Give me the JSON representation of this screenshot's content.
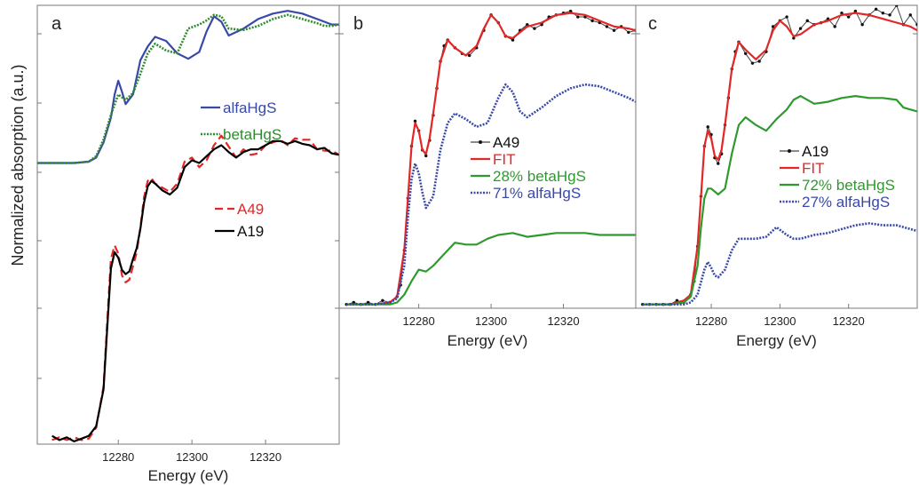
{
  "figure": {
    "ylabel": "Normalized absorption (a.u.)"
  },
  "chart_data": [
    {
      "panel": "a",
      "type": "line",
      "xlabel": "Energy (eV)",
      "ylabel": "Normalized absorption (a.u.)",
      "xlim": [
        12258,
        12340
      ],
      "ylim": [
        -0.1,
        3.1
      ],
      "xticks": [
        12280,
        12300,
        12320
      ],
      "x_tick_labels": [
        "12280",
        "12300",
        "12320"
      ],
      "grid": false,
      "legend_position": "middle-right",
      "series": [
        {
          "name": "alfaHgS",
          "color": "#3949a8",
          "style": "solid",
          "x": [
            12258,
            12268,
            12272,
            12274,
            12276,
            12278,
            12279,
            12280,
            12281,
            12282,
            12284,
            12286,
            12288,
            12290,
            12293,
            12296,
            12299,
            12302,
            12304,
            12306,
            12308,
            12310,
            12314,
            12318,
            12322,
            12326,
            12330,
            12334,
            12336,
            12338,
            12340
          ],
          "y": [
            1.95,
            1.95,
            1.96,
            1.99,
            2.1,
            2.28,
            2.45,
            2.55,
            2.47,
            2.38,
            2.45,
            2.7,
            2.8,
            2.87,
            2.84,
            2.75,
            2.71,
            2.76,
            2.91,
            3.02,
            2.98,
            2.88,
            2.93,
            3.0,
            3.04,
            3.06,
            3.04,
            3.0,
            2.98,
            2.96,
            2.96
          ]
        },
        {
          "name": "betaHgS",
          "color": "#2e8b2e",
          "style": "dotted",
          "x": [
            12258,
            12268,
            12272,
            12274,
            12276,
            12278,
            12280,
            12282,
            12284,
            12286,
            12288,
            12290,
            12293,
            12296,
            12299,
            12302,
            12304,
            12306,
            12308,
            12310,
            12314,
            12318,
            12322,
            12326,
            12330,
            12334,
            12336,
            12338,
            12340
          ],
          "y": [
            1.95,
            1.95,
            1.96,
            2.0,
            2.12,
            2.3,
            2.45,
            2.41,
            2.46,
            2.6,
            2.75,
            2.82,
            2.77,
            2.75,
            2.93,
            2.96,
            2.99,
            3.03,
            3.02,
            2.93,
            2.92,
            2.95,
            3.0,
            3.03,
            3.0,
            2.97,
            2.95,
            2.95,
            2.96
          ]
        },
        {
          "name": "A49",
          "color": "#e32626",
          "style": "dashed",
          "x": [
            12262,
            12264,
            12266,
            12268,
            12270,
            12272,
            12274,
            12276,
            12277,
            12278,
            12279,
            12280,
            12281,
            12282,
            12283,
            12284,
            12285,
            12286,
            12287,
            12288,
            12289,
            12290,
            12292,
            12294,
            12296,
            12298,
            12300,
            12302,
            12304,
            12306,
            12308,
            12310,
            12312,
            12314,
            12316,
            12318,
            12320,
            12322,
            12324,
            12326,
            12328,
            12330,
            12332,
            12334,
            12336,
            12338,
            12340
          ],
          "y": [
            -0.07,
            -0.05,
            -0.07,
            -0.05,
            -0.07,
            -0.06,
            0.02,
            0.32,
            0.8,
            1.25,
            1.35,
            1.29,
            1.13,
            1.08,
            1.1,
            1.2,
            1.3,
            1.48,
            1.7,
            1.82,
            1.84,
            1.8,
            1.77,
            1.74,
            1.8,
            1.96,
            1.99,
            1.92,
            1.97,
            2.08,
            2.15,
            2.07,
            1.99,
            2.05,
            2.01,
            2.02,
            2.08,
            2.1,
            2.12,
            2.08,
            2.13,
            2.12,
            2.12,
            2.05,
            2.04,
            2.04,
            2.01
          ]
        },
        {
          "name": "A19",
          "color": "#000000",
          "style": "solid",
          "x": [
            12262,
            12264,
            12266,
            12268,
            12270,
            12272,
            12274,
            12276,
            12277,
            12278,
            12279,
            12280,
            12281,
            12282,
            12283,
            12284,
            12285,
            12286,
            12287,
            12288,
            12289,
            12290,
            12292,
            12294,
            12296,
            12298,
            12300,
            12302,
            12304,
            12306,
            12308,
            12310,
            12312,
            12314,
            12316,
            12318,
            12320,
            12322,
            12324,
            12326,
            12328,
            12330,
            12332,
            12334,
            12336,
            12338,
            12340
          ],
          "y": [
            -0.04,
            -0.07,
            -0.05,
            -0.08,
            -0.06,
            -0.04,
            0.03,
            0.3,
            0.75,
            1.18,
            1.3,
            1.26,
            1.17,
            1.14,
            1.16,
            1.25,
            1.33,
            1.47,
            1.66,
            1.78,
            1.82,
            1.8,
            1.75,
            1.72,
            1.77,
            1.92,
            1.97,
            1.95,
            2.0,
            2.05,
            2.08,
            2.03,
            1.99,
            2.03,
            2.05,
            2.05,
            2.08,
            2.11,
            2.11,
            2.09,
            2.11,
            2.09,
            2.08,
            2.05,
            2.06,
            2.02,
            2.01
          ]
        }
      ]
    },
    {
      "panel": "b",
      "type": "line",
      "xlabel": "Energy (eV)",
      "xlim": [
        12258,
        12340
      ],
      "ylim": [
        -0.02,
        1.55
      ],
      "xticks": [
        12280,
        12300,
        12320
      ],
      "x_tick_labels": [
        "12280",
        "12300",
        "12320"
      ],
      "grid": false,
      "legend_position": "middle-left",
      "series": [
        {
          "name": "A49",
          "color": "#444444",
          "style": "line-markers",
          "x": [
            12260,
            12262,
            12264,
            12266,
            12268,
            12270,
            12272,
            12274,
            12275,
            12276,
            12277,
            12278,
            12279,
            12280,
            12281,
            12282,
            12283,
            12284,
            12285,
            12286,
            12287,
            12288,
            12290,
            12292,
            12294,
            12296,
            12298,
            12300,
            12302,
            12304,
            12306,
            12308,
            12310,
            12312,
            12314,
            12316,
            12318,
            12320,
            12322,
            12324,
            12326,
            12328,
            12330,
            12332,
            12334,
            12336,
            12338,
            12340
          ],
          "y": [
            0.0,
            0.01,
            0.0,
            0.01,
            0.0,
            0.02,
            0.01,
            0.04,
            0.1,
            0.28,
            0.55,
            0.82,
            0.95,
            0.9,
            0.8,
            0.77,
            0.85,
            0.98,
            1.12,
            1.26,
            1.34,
            1.37,
            1.33,
            1.3,
            1.29,
            1.33,
            1.42,
            1.5,
            1.46,
            1.39,
            1.37,
            1.42,
            1.45,
            1.43,
            1.45,
            1.49,
            1.5,
            1.51,
            1.52,
            1.49,
            1.49,
            1.47,
            1.46,
            1.44,
            1.42,
            1.44,
            1.41,
            1.42
          ]
        },
        {
          "name": "FIT",
          "color": "#e32626",
          "style": "solid",
          "x": [
            12260,
            12268,
            12272,
            12274,
            12276,
            12277,
            12278,
            12279,
            12280,
            12281,
            12282,
            12283,
            12284,
            12286,
            12288,
            12290,
            12293,
            12296,
            12298,
            12300,
            12302,
            12304,
            12306,
            12310,
            12314,
            12318,
            12322,
            12326,
            12330,
            12334,
            12338,
            12340
          ],
          "y": [
            0.0,
            0.0,
            0.01,
            0.04,
            0.28,
            0.55,
            0.82,
            0.94,
            0.9,
            0.8,
            0.78,
            0.86,
            0.99,
            1.26,
            1.37,
            1.33,
            1.29,
            1.34,
            1.43,
            1.5,
            1.46,
            1.39,
            1.38,
            1.44,
            1.46,
            1.5,
            1.51,
            1.5,
            1.47,
            1.44,
            1.43,
            1.42
          ]
        },
        {
          "name": "28% betaHgS",
          "color": "#2e9a2e",
          "style": "solid",
          "x": [
            12260,
            12268,
            12272,
            12274,
            12276,
            12278,
            12280,
            12282,
            12284,
            12286,
            12288,
            12290,
            12293,
            12296,
            12299,
            12302,
            12306,
            12310,
            12314,
            12318,
            12322,
            12326,
            12330,
            12334,
            12338,
            12340
          ],
          "y": [
            0.0,
            0.0,
            0.0,
            0.01,
            0.05,
            0.12,
            0.18,
            0.17,
            0.2,
            0.24,
            0.28,
            0.32,
            0.31,
            0.31,
            0.34,
            0.36,
            0.37,
            0.35,
            0.36,
            0.37,
            0.37,
            0.37,
            0.36,
            0.36,
            0.36,
            0.36
          ]
        },
        {
          "name": "71% alfaHgS",
          "color": "#3949a8",
          "style": "dotted",
          "x": [
            12260,
            12268,
            12272,
            12274,
            12276,
            12277,
            12278,
            12279,
            12280,
            12281,
            12282,
            12284,
            12286,
            12288,
            12290,
            12293,
            12296,
            12299,
            12302,
            12304,
            12306,
            12308,
            12310,
            12314,
            12318,
            12322,
            12326,
            12330,
            12334,
            12338,
            12340
          ],
          "y": [
            0.0,
            0.0,
            0.01,
            0.03,
            0.2,
            0.45,
            0.65,
            0.73,
            0.68,
            0.58,
            0.5,
            0.56,
            0.8,
            0.94,
            0.99,
            0.96,
            0.92,
            0.94,
            1.07,
            1.14,
            1.1,
            1.0,
            0.97,
            1.02,
            1.08,
            1.12,
            1.14,
            1.13,
            1.1,
            1.07,
            1.05
          ]
        }
      ]
    },
    {
      "panel": "c",
      "type": "line",
      "xlabel": "Energy (eV)",
      "xlim": [
        12258,
        12340
      ],
      "ylim": [
        -0.02,
        1.55
      ],
      "xticks": [
        12280,
        12300,
        12320
      ],
      "x_tick_labels": [
        "12280",
        "12300",
        "12320"
      ],
      "grid": false,
      "legend_position": "middle-right",
      "series": [
        {
          "name": "A19",
          "color": "#444444",
          "style": "line-markers",
          "x": [
            12260,
            12262,
            12264,
            12266,
            12268,
            12270,
            12272,
            12274,
            12275,
            12276,
            12277,
            12278,
            12279,
            12280,
            12281,
            12282,
            12283,
            12284,
            12285,
            12286,
            12287,
            12288,
            12290,
            12292,
            12294,
            12296,
            12298,
            12300,
            12302,
            12304,
            12306,
            12308,
            12310,
            12312,
            12314,
            12316,
            12318,
            12320,
            12322,
            12324,
            12326,
            12328,
            12330,
            12332,
            12334,
            12336,
            12338,
            12340
          ],
          "y": [
            0.0,
            0.0,
            0.0,
            0.0,
            0.0,
            0.02,
            0.01,
            0.05,
            0.12,
            0.3,
            0.56,
            0.82,
            0.92,
            0.88,
            0.76,
            0.73,
            0.78,
            0.93,
            1.07,
            1.22,
            1.31,
            1.36,
            1.3,
            1.25,
            1.26,
            1.31,
            1.44,
            1.47,
            1.49,
            1.38,
            1.43,
            1.47,
            1.45,
            1.46,
            1.48,
            1.44,
            1.51,
            1.49,
            1.52,
            1.45,
            1.5,
            1.53,
            1.51,
            1.5,
            1.55,
            1.45,
            1.5,
            1.45
          ]
        },
        {
          "name": "FIT",
          "color": "#e32626",
          "style": "solid",
          "x": [
            12260,
            12268,
            12272,
            12274,
            12276,
            12277,
            12278,
            12279,
            12280,
            12281,
            12282,
            12283,
            12284,
            12286,
            12288,
            12290,
            12293,
            12296,
            12298,
            12300,
            12302,
            12304,
            12306,
            12310,
            12314,
            12318,
            12322,
            12326,
            12330,
            12334,
            12338,
            12340
          ],
          "y": [
            0.0,
            0.0,
            0.02,
            0.05,
            0.3,
            0.56,
            0.82,
            0.9,
            0.86,
            0.77,
            0.75,
            0.8,
            0.93,
            1.22,
            1.36,
            1.32,
            1.27,
            1.32,
            1.42,
            1.47,
            1.44,
            1.39,
            1.4,
            1.45,
            1.47,
            1.5,
            1.51,
            1.5,
            1.48,
            1.46,
            1.44,
            1.42
          ]
        },
        {
          "name": "72% betaHgS",
          "color": "#2e9a2e",
          "style": "solid",
          "x": [
            12260,
            12268,
            12272,
            12274,
            12276,
            12277,
            12278,
            12279,
            12280,
            12282,
            12284,
            12286,
            12288,
            12290,
            12293,
            12296,
            12299,
            12302,
            12304,
            12306,
            12308,
            12310,
            12314,
            12318,
            12322,
            12326,
            12330,
            12334,
            12336,
            12338,
            12340
          ],
          "y": [
            0.0,
            0.0,
            0.01,
            0.04,
            0.2,
            0.4,
            0.55,
            0.6,
            0.6,
            0.57,
            0.6,
            0.78,
            0.93,
            0.97,
            0.93,
            0.9,
            0.96,
            1.01,
            1.06,
            1.08,
            1.06,
            1.04,
            1.05,
            1.07,
            1.08,
            1.07,
            1.07,
            1.06,
            1.02,
            1.01,
            1.0
          ]
        },
        {
          "name": "27% alfaHgS",
          "color": "#3949a8",
          "style": "dotted",
          "x": [
            12260,
            12268,
            12272,
            12274,
            12276,
            12278,
            12279,
            12280,
            12281,
            12282,
            12284,
            12286,
            12288,
            12290,
            12293,
            12296,
            12299,
            12302,
            12304,
            12306,
            12308,
            12310,
            12314,
            12318,
            12322,
            12326,
            12330,
            12334,
            12338,
            12340
          ],
          "y": [
            0.0,
            0.0,
            0.0,
            0.01,
            0.05,
            0.18,
            0.22,
            0.19,
            0.15,
            0.14,
            0.18,
            0.28,
            0.34,
            0.34,
            0.34,
            0.35,
            0.4,
            0.36,
            0.34,
            0.34,
            0.35,
            0.36,
            0.37,
            0.39,
            0.41,
            0.42,
            0.41,
            0.41,
            0.39,
            0.38
          ]
        }
      ]
    }
  ],
  "colors": {
    "axis": "#7a7a7a",
    "text": "#222222"
  }
}
